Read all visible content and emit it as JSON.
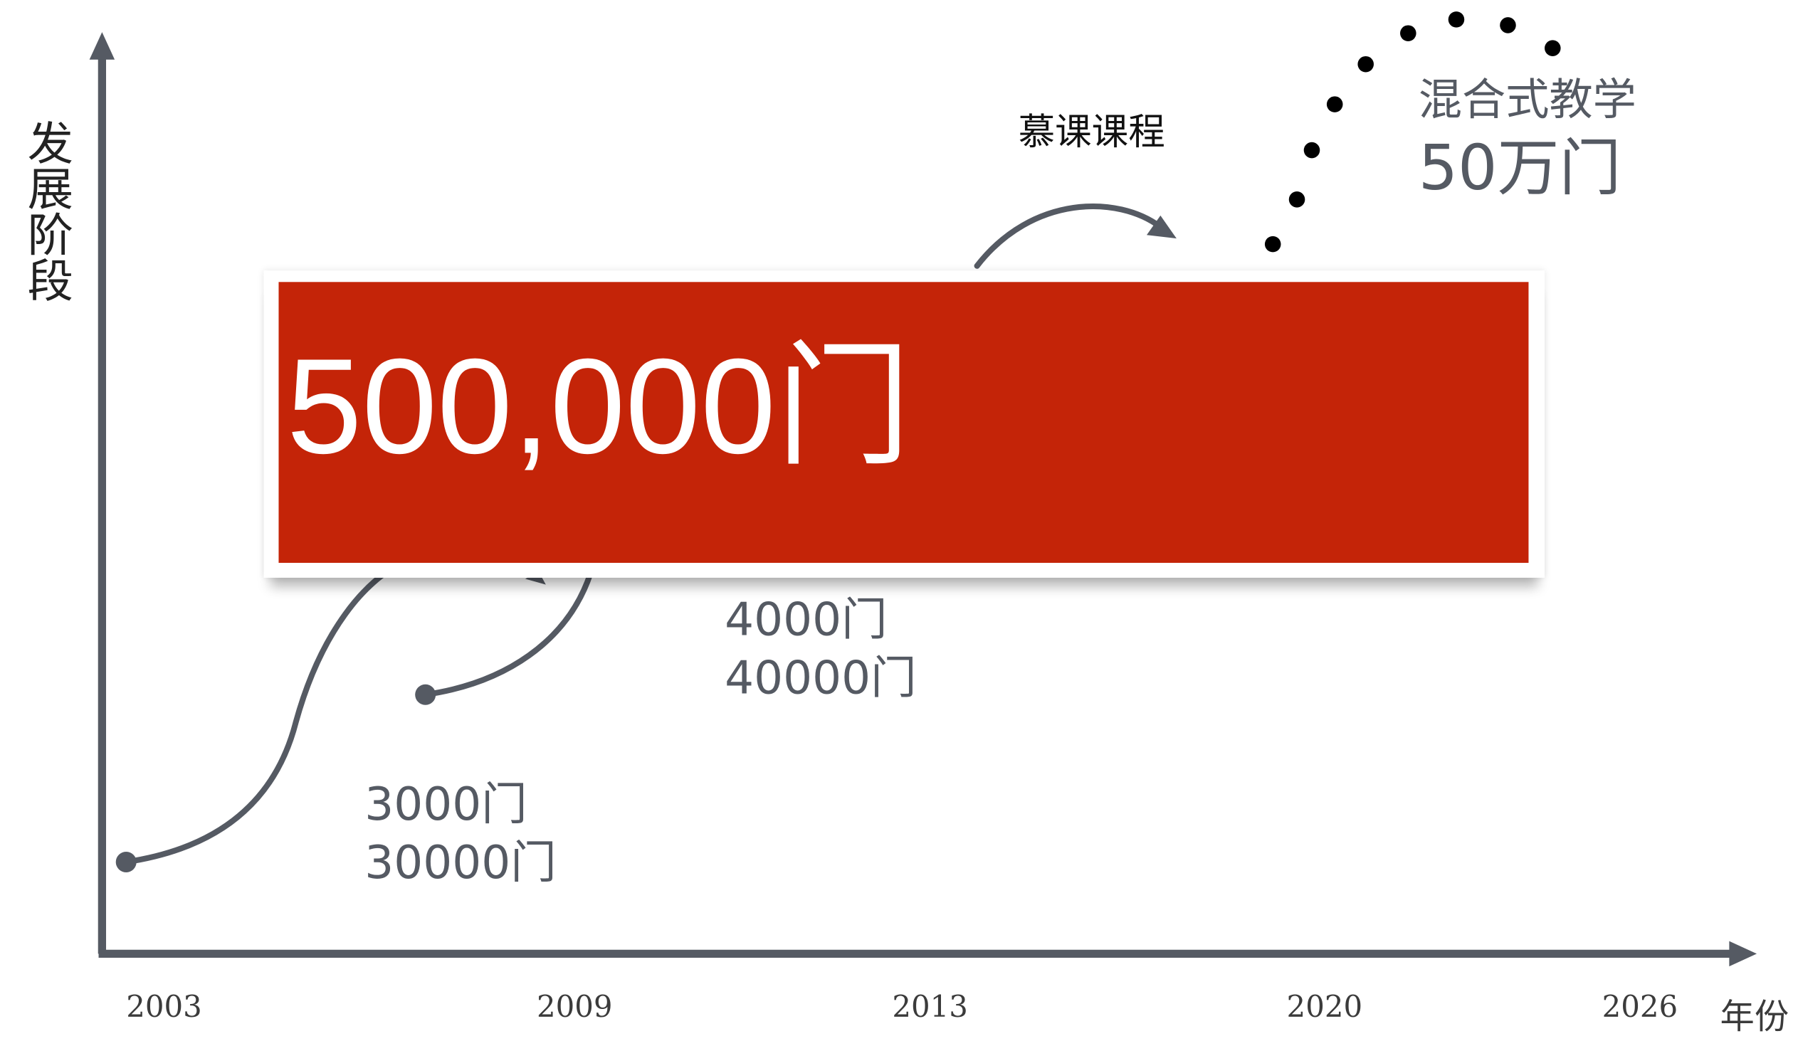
{
  "axes": {
    "y_label": "发展阶段",
    "x_unit": "年份",
    "x_ticks": [
      "2003",
      "2009",
      "2013",
      "2020",
      "2026"
    ]
  },
  "stages": {
    "stage1": {
      "line1": "3000门",
      "line2": "30000门"
    },
    "stage2": {
      "line1": "4000门",
      "line2": "40000门"
    },
    "mooc": {
      "title": "慕课课程"
    },
    "blended": {
      "title": "混合式教学",
      "count": "50万门"
    }
  },
  "banner": {
    "text": "500,000门"
  },
  "colors": {
    "axis": "#555a63",
    "curve": "#555a63",
    "dots": "#000000",
    "banner_fill": "#c42408",
    "banner_text": "#ffffff"
  }
}
